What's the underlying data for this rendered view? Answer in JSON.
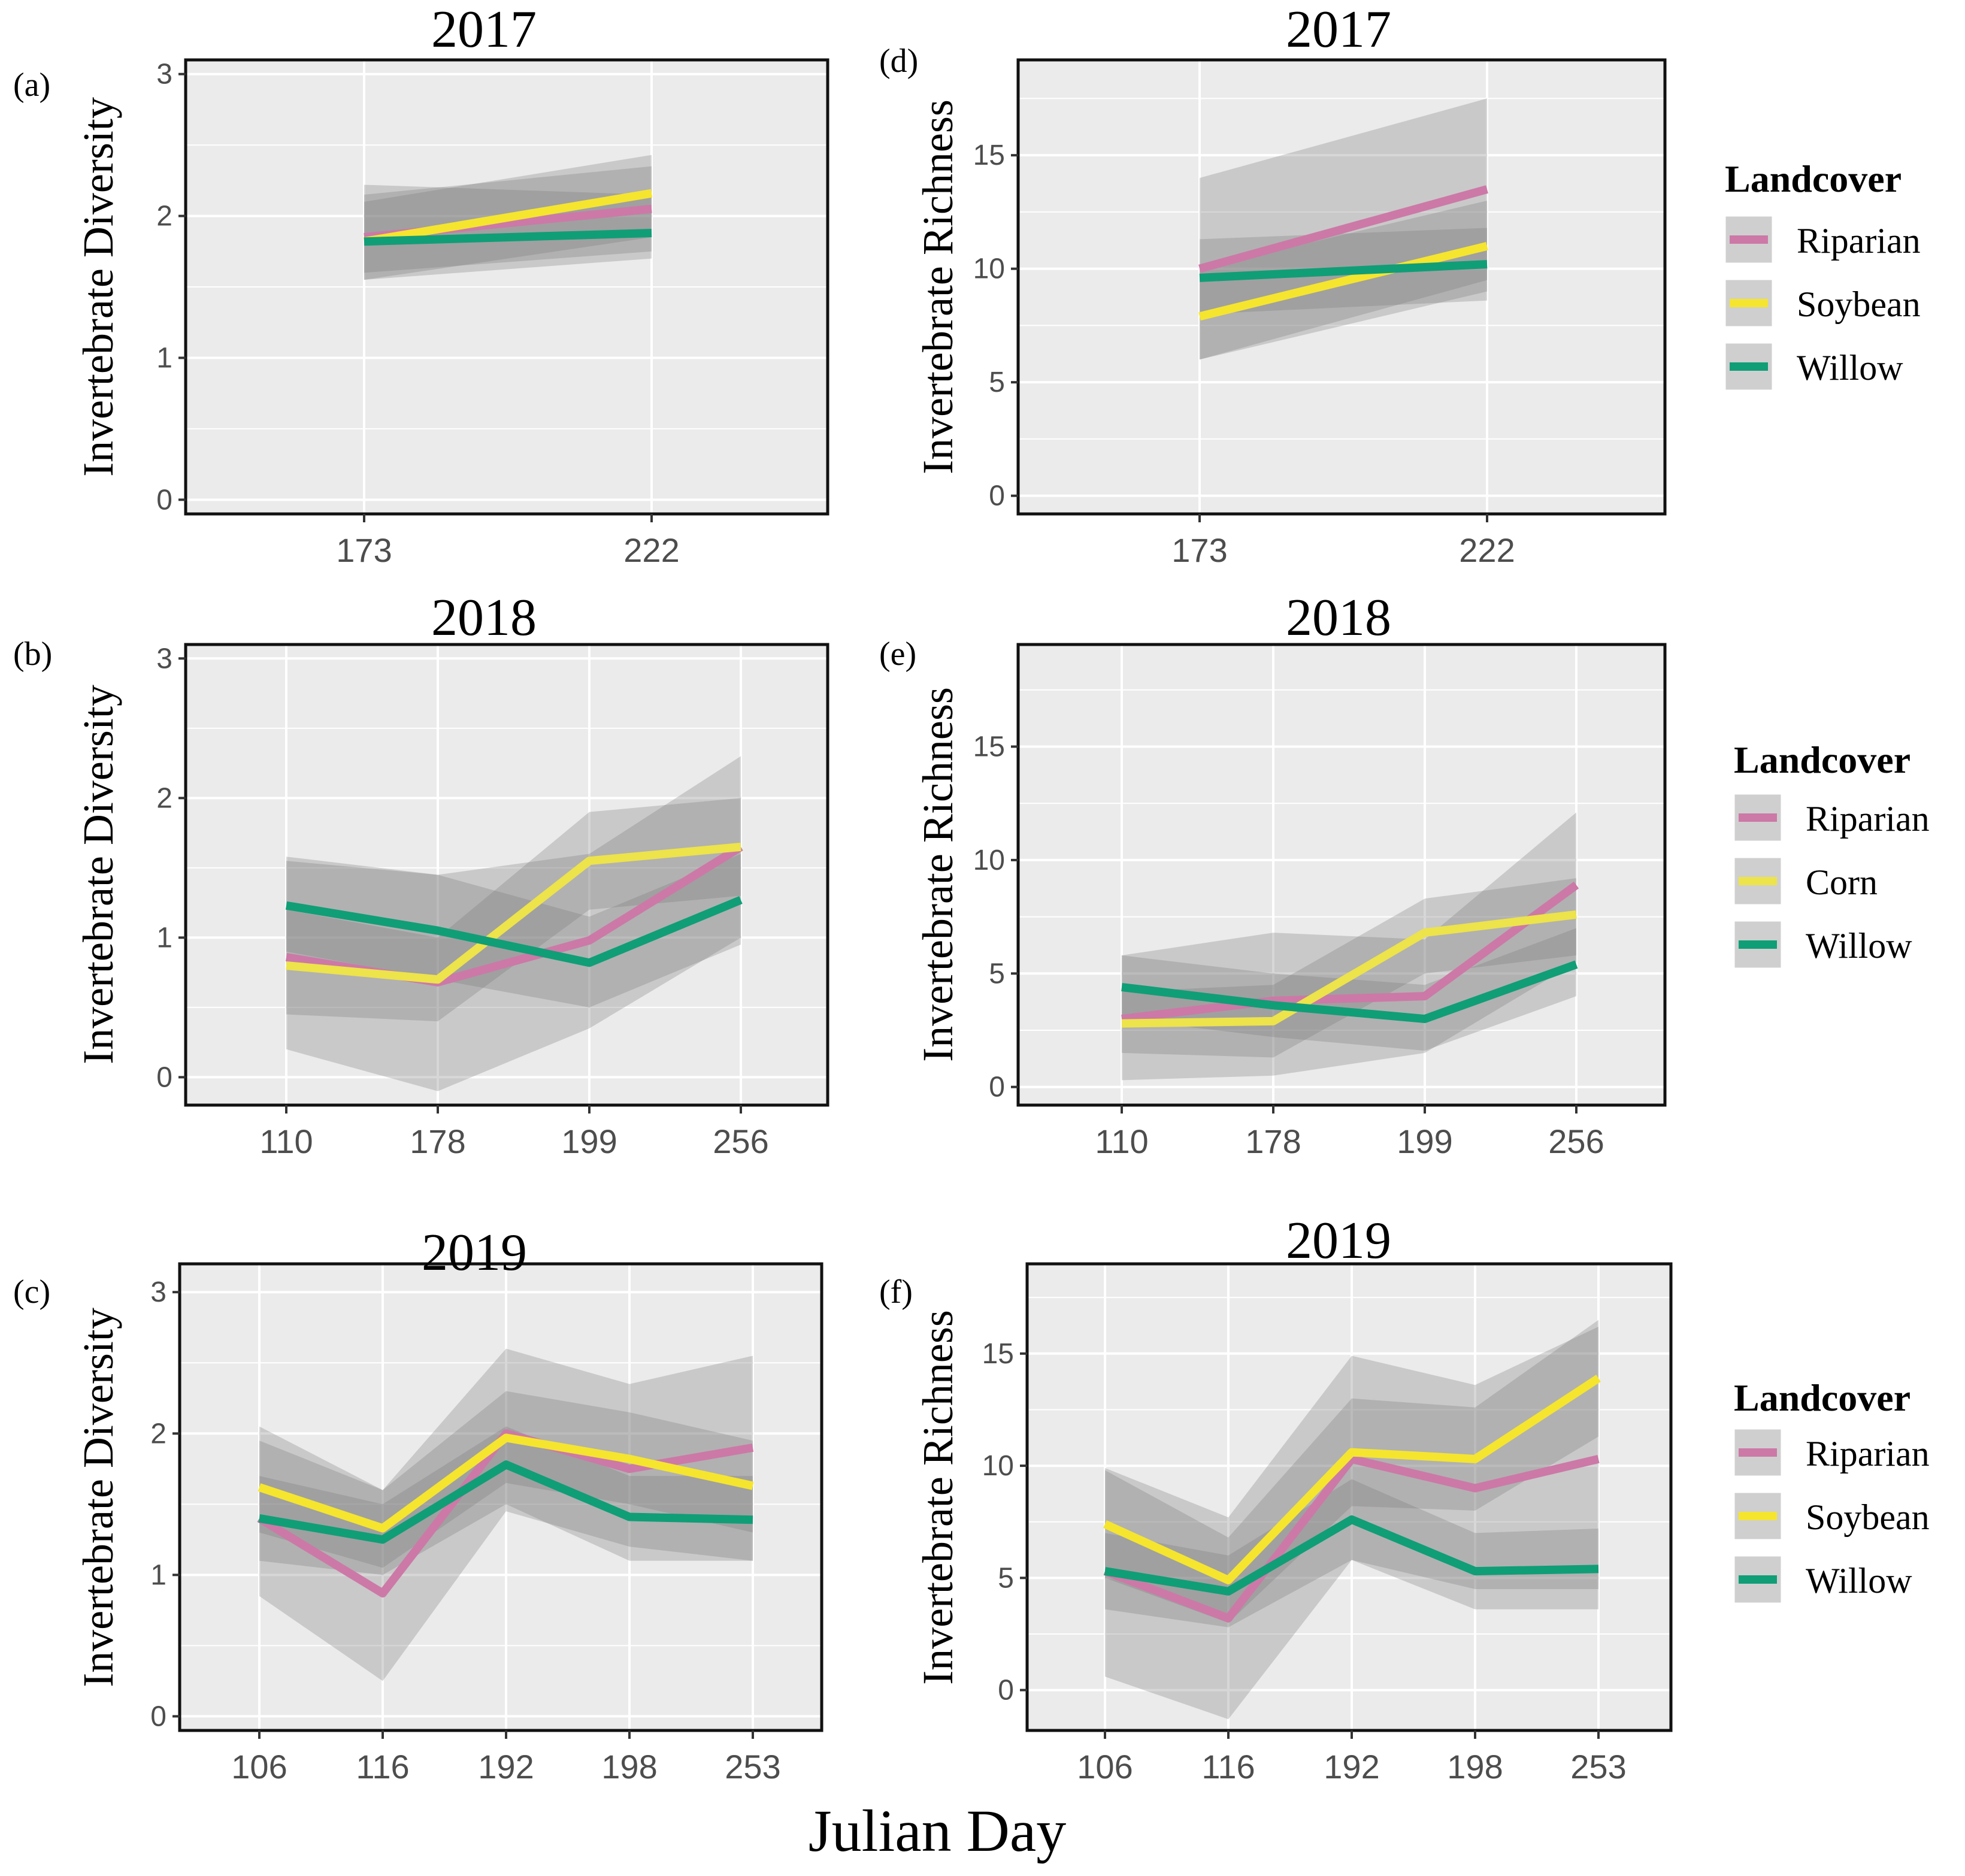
{
  "figure": {
    "xlabel": "Julian Day"
  },
  "colors": {
    "Riparian": "#cc79a7",
    "Soybean": "#f5e52e",
    "Corn": "#ede34a",
    "Willow": "#109e77",
    "panel_bg": "#ebebeb",
    "grid": "#ffffff",
    "ribbon": "#7a7a7a"
  },
  "chart_data": [
    {
      "type": "line",
      "panel": "(a)",
      "title": "2017",
      "xlabel": "",
      "ylabel": "Invertebrate Diversity",
      "categories": [
        "173",
        "222"
      ],
      "ylim": [
        -0.1,
        3.1
      ],
      "yticks": [
        0,
        1,
        2,
        3
      ],
      "series": [
        {
          "name": "Riparian",
          "values": [
            1.85,
            2.05
          ],
          "lower": [
            1.6,
            1.75
          ],
          "upper": [
            2.15,
            2.35
          ]
        },
        {
          "name": "Soybean",
          "values": [
            1.82,
            2.16
          ],
          "lower": [
            1.55,
            1.85
          ],
          "upper": [
            2.1,
            2.43
          ]
        },
        {
          "name": "Willow",
          "values": [
            1.82,
            1.88
          ],
          "lower": [
            1.55,
            1.7
          ],
          "upper": [
            2.22,
            2.15
          ]
        }
      ]
    },
    {
      "type": "line",
      "panel": "(b)",
      "title": "2018",
      "xlabel": "",
      "ylabel": "Invertebrate Diversity",
      "categories": [
        "110",
        "178",
        "199",
        "256"
      ],
      "ylim": [
        -0.2,
        3.1
      ],
      "yticks": [
        0,
        1,
        2,
        3
      ],
      "series": [
        {
          "name": "Riparian",
          "values": [
            0.86,
            0.68,
            0.98,
            1.65
          ],
          "lower": [
            0.2,
            -0.1,
            0.35,
            1.0
          ],
          "upper": [
            1.55,
            1.45,
            1.6,
            2.3
          ]
        },
        {
          "name": "Corn",
          "values": [
            0.8,
            0.7,
            1.55,
            1.65
          ],
          "lower": [
            0.45,
            0.4,
            1.2,
            1.3
          ],
          "upper": [
            1.2,
            1.0,
            1.9,
            2.0
          ]
        },
        {
          "name": "Willow",
          "values": [
            1.23,
            1.05,
            0.82,
            1.27
          ],
          "lower": [
            0.9,
            0.7,
            0.5,
            0.95
          ],
          "upper": [
            1.58,
            1.45,
            1.15,
            1.6
          ]
        }
      ]
    },
    {
      "type": "line",
      "panel": "(c)",
      "title": "2019",
      "xlabel": "",
      "ylabel": "Invertebrate Diversity",
      "categories": [
        "106",
        "116",
        "192",
        "198",
        "253"
      ],
      "ylim": [
        -0.1,
        3.2
      ],
      "yticks": [
        0,
        1,
        2,
        3
      ],
      "series": [
        {
          "name": "Riparian",
          "values": [
            1.4,
            0.87,
            2.0,
            1.75,
            1.9
          ],
          "lower": [
            0.85,
            0.25,
            1.45,
            1.2,
            1.1
          ],
          "upper": [
            2.05,
            1.6,
            2.6,
            2.35,
            2.55
          ]
        },
        {
          "name": "Soybean",
          "values": [
            1.62,
            1.33,
            1.97,
            1.82,
            1.63
          ],
          "lower": [
            1.3,
            1.05,
            1.65,
            1.5,
            1.3
          ],
          "upper": [
            1.95,
            1.6,
            2.3,
            2.15,
            1.95
          ]
        },
        {
          "name": "Willow",
          "values": [
            1.4,
            1.25,
            1.78,
            1.41,
            1.39
          ],
          "lower": [
            1.1,
            1.0,
            1.5,
            1.1,
            1.1
          ],
          "upper": [
            1.7,
            1.5,
            2.05,
            1.7,
            1.7
          ]
        }
      ]
    },
    {
      "type": "line",
      "panel": "(d)",
      "title": "2017",
      "xlabel": "",
      "ylabel": "Invertebrate Richness",
      "categories": [
        "173",
        "222"
      ],
      "ylim": [
        -0.8,
        19.2
      ],
      "yticks": [
        0,
        5,
        10,
        15
      ],
      "series": [
        {
          "name": "Riparian",
          "values": [
            10.0,
            13.5
          ],
          "lower": [
            6.0,
            9.5
          ],
          "upper": [
            14.0,
            17.5
          ]
        },
        {
          "name": "Soybean",
          "values": [
            7.9,
            11.0
          ],
          "lower": [
            6.0,
            9.0
          ],
          "upper": [
            10.0,
            13.0
          ]
        },
        {
          "name": "Willow",
          "values": [
            9.6,
            10.2
          ],
          "lower": [
            8.0,
            8.6
          ],
          "upper": [
            11.3,
            11.8
          ]
        }
      ]
    },
    {
      "type": "line",
      "panel": "(e)",
      "title": "2018",
      "xlabel": "",
      "ylabel": "Invertebrate Richness",
      "categories": [
        "110",
        "178",
        "199",
        "256"
      ],
      "ylim": [
        -0.8,
        19.5
      ],
      "yticks": [
        0,
        5,
        10,
        15
      ],
      "series": [
        {
          "name": "Riparian",
          "values": [
            3.0,
            3.8,
            4.0,
            8.9
          ],
          "lower": [
            0.3,
            0.5,
            1.5,
            5.5
          ],
          "upper": [
            5.8,
            6.8,
            6.5,
            12.1
          ]
        },
        {
          "name": "Corn",
          "values": [
            2.8,
            2.9,
            6.8,
            7.6
          ],
          "lower": [
            1.5,
            1.3,
            5.0,
            5.8
          ],
          "upper": [
            4.2,
            4.5,
            8.3,
            9.2
          ]
        },
        {
          "name": "Willow",
          "values": [
            4.4,
            3.6,
            3.0,
            5.4
          ],
          "lower": [
            3.0,
            2.2,
            1.6,
            4.0
          ],
          "upper": [
            5.8,
            5.0,
            4.5,
            7.0
          ]
        }
      ]
    },
    {
      "type": "line",
      "panel": "(f)",
      "title": "2019",
      "xlabel": "",
      "ylabel": "Invertebrate Richness",
      "categories": [
        "106",
        "116",
        "192",
        "198",
        "253"
      ],
      "ylim": [
        -1.8,
        19.0
      ],
      "yticks": [
        0,
        5,
        10,
        15
      ],
      "series": [
        {
          "name": "Riparian",
          "values": [
            5.3,
            3.2,
            10.3,
            9.0,
            10.3
          ],
          "lower": [
            0.6,
            -1.3,
            5.8,
            4.5,
            4.5
          ],
          "upper": [
            9.9,
            7.7,
            14.9,
            13.6,
            16.2
          ]
        },
        {
          "name": "Soybean",
          "values": [
            7.4,
            4.9,
            10.6,
            10.3,
            13.9
          ],
          "lower": [
            5.0,
            3.0,
            8.2,
            8.0,
            11.3
          ],
          "upper": [
            9.8,
            6.8,
            13.0,
            12.6,
            16.5
          ]
        },
        {
          "name": "Willow",
          "values": [
            5.3,
            4.4,
            7.6,
            5.3,
            5.4
          ],
          "lower": [
            3.6,
            2.8,
            5.8,
            3.6,
            3.6
          ],
          "upper": [
            7.0,
            6.0,
            9.4,
            7.0,
            7.2
          ]
        }
      ]
    }
  ],
  "legends": [
    {
      "title": "Landcover",
      "items": [
        "Riparian",
        "Soybean",
        "Willow"
      ]
    },
    {
      "title": "Landcover",
      "items": [
        "Riparian",
        "Corn",
        "Willow"
      ]
    },
    {
      "title": "Landcover",
      "items": [
        "Riparian",
        "Soybean",
        "Willow"
      ]
    }
  ]
}
